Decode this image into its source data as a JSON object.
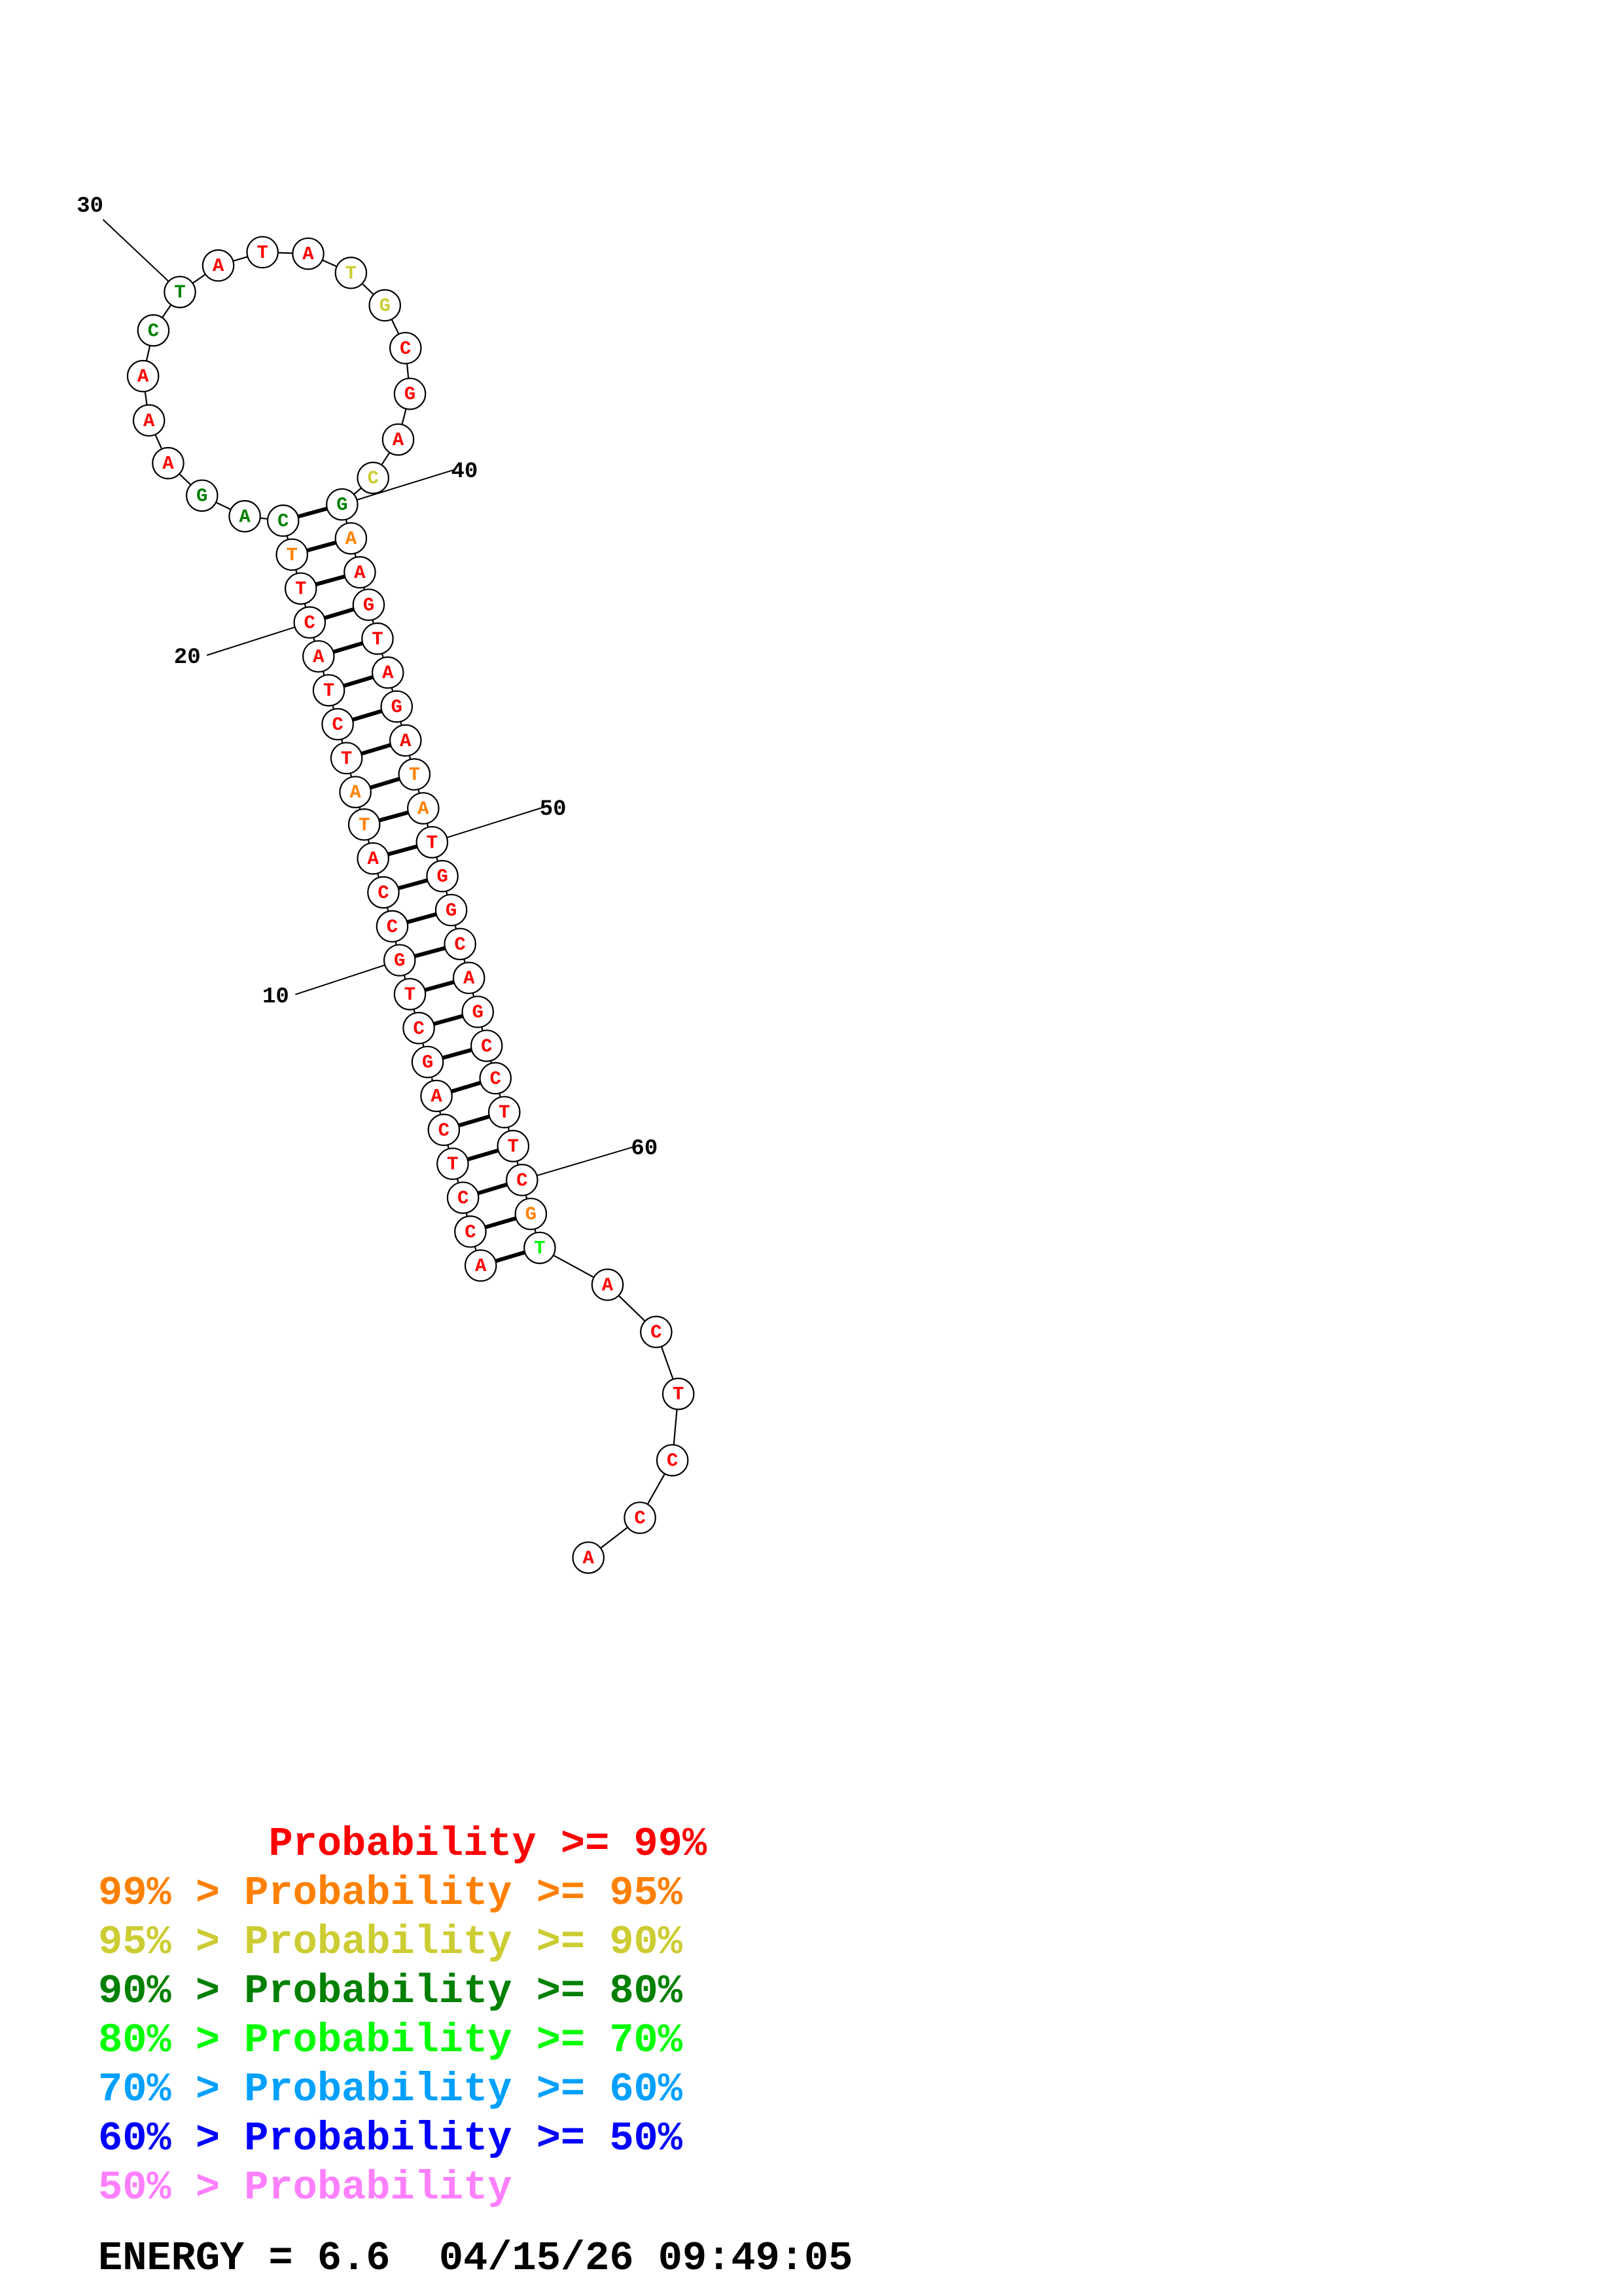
{
  "sequence": [
    {
      "n": 1,
      "base": "A",
      "color": "#ff0000"
    },
    {
      "n": 2,
      "base": "C",
      "color": "#ff0000"
    },
    {
      "n": 3,
      "base": "C",
      "color": "#ff0000"
    },
    {
      "n": 4,
      "base": "T",
      "color": "#ff0000"
    },
    {
      "n": 5,
      "base": "C",
      "color": "#ff0000"
    },
    {
      "n": 6,
      "base": "A",
      "color": "#ff0000"
    },
    {
      "n": 7,
      "base": "G",
      "color": "#ff0000"
    },
    {
      "n": 8,
      "base": "C",
      "color": "#ff0000"
    },
    {
      "n": 9,
      "base": "T",
      "color": "#ff0000"
    },
    {
      "n": 10,
      "base": "G",
      "color": "#ff0000"
    },
    {
      "n": 11,
      "base": "C",
      "color": "#ff0000"
    },
    {
      "n": 12,
      "base": "C",
      "color": "#ff0000"
    },
    {
      "n": 13,
      "base": "A",
      "color": "#ff0000"
    },
    {
      "n": 14,
      "base": "T",
      "color": "#ff8000"
    },
    {
      "n": 15,
      "base": "A",
      "color": "#ff8000"
    },
    {
      "n": 16,
      "base": "T",
      "color": "#ff0000"
    },
    {
      "n": 17,
      "base": "C",
      "color": "#ff0000"
    },
    {
      "n": 18,
      "base": "T",
      "color": "#ff0000"
    },
    {
      "n": 19,
      "base": "A",
      "color": "#ff0000"
    },
    {
      "n": 20,
      "base": "C",
      "color": "#ff0000"
    },
    {
      "n": 21,
      "base": "T",
      "color": "#ff0000"
    },
    {
      "n": 22,
      "base": "T",
      "color": "#ff8000"
    },
    {
      "n": 23,
      "base": "C",
      "color": "#008000"
    },
    {
      "n": 24,
      "base": "A",
      "color": "#008000"
    },
    {
      "n": 25,
      "base": "G",
      "color": "#008000"
    },
    {
      "n": 26,
      "base": "A",
      "color": "#ff0000"
    },
    {
      "n": 27,
      "base": "A",
      "color": "#ff0000"
    },
    {
      "n": 28,
      "base": "A",
      "color": "#ff0000"
    },
    {
      "n": 29,
      "base": "C",
      "color": "#008000"
    },
    {
      "n": 30,
      "base": "T",
      "color": "#008000"
    },
    {
      "n": 31,
      "base": "A",
      "color": "#ff0000"
    },
    {
      "n": 32,
      "base": "T",
      "color": "#ff0000"
    },
    {
      "n": 33,
      "base": "A",
      "color": "#ff0000"
    },
    {
      "n": 34,
      "base": "T",
      "color": "#cccc33"
    },
    {
      "n": 35,
      "base": "G",
      "color": "#cccc33"
    },
    {
      "n": 36,
      "base": "C",
      "color": "#ff0000"
    },
    {
      "n": 37,
      "base": "G",
      "color": "#ff0000"
    },
    {
      "n": 38,
      "base": "A",
      "color": "#ff0000"
    },
    {
      "n": 39,
      "base": "C",
      "color": "#cccc33"
    },
    {
      "n": 40,
      "base": "G",
      "color": "#008000"
    },
    {
      "n": 41,
      "base": "A",
      "color": "#ff8000"
    },
    {
      "n": 42,
      "base": "A",
      "color": "#ff0000"
    },
    {
      "n": 43,
      "base": "G",
      "color": "#ff0000"
    },
    {
      "n": 44,
      "base": "T",
      "color": "#ff0000"
    },
    {
      "n": 45,
      "base": "A",
      "color": "#ff0000"
    },
    {
      "n": 46,
      "base": "G",
      "color": "#ff0000"
    },
    {
      "n": 47,
      "base": "A",
      "color": "#ff0000"
    },
    {
      "n": 48,
      "base": "T",
      "color": "#ff8000"
    },
    {
      "n": 49,
      "base": "A",
      "color": "#ff8000"
    },
    {
      "n": 50,
      "base": "T",
      "color": "#ff0000"
    },
    {
      "n": 51,
      "base": "G",
      "color": "#ff0000"
    },
    {
      "n": 52,
      "base": "G",
      "color": "#ff0000"
    },
    {
      "n": 53,
      "base": "C",
      "color": "#ff0000"
    },
    {
      "n": 54,
      "base": "A",
      "color": "#ff0000"
    },
    {
      "n": 55,
      "base": "G",
      "color": "#ff0000"
    },
    {
      "n": 56,
      "base": "C",
      "color": "#ff0000"
    },
    {
      "n": 57,
      "base": "C",
      "color": "#ff0000"
    },
    {
      "n": 58,
      "base": "T",
      "color": "#ff0000"
    },
    {
      "n": 59,
      "base": "T",
      "color": "#ff0000"
    },
    {
      "n": 60,
      "base": "C",
      "color": "#ff0000"
    },
    {
      "n": 61,
      "base": "G",
      "color": "#ff8000"
    },
    {
      "n": 62,
      "base": "T",
      "color": "#00ff00"
    },
    {
      "n": 63,
      "base": "A",
      "color": "#ff0000"
    },
    {
      "n": 64,
      "base": "C",
      "color": "#ff0000"
    },
    {
      "n": 65,
      "base": "T",
      "color": "#ff0000"
    },
    {
      "n": 66,
      "base": "C",
      "color": "#ff0000"
    },
    {
      "n": 67,
      "base": "C",
      "color": "#ff0000"
    },
    {
      "n": 68,
      "base": "A",
      "color": "#ff0000"
    }
  ],
  "base_pairs": [
    [
      1,
      62
    ],
    [
      2,
      61
    ],
    [
      3,
      60
    ],
    [
      4,
      59
    ],
    [
      5,
      58
    ],
    [
      6,
      57
    ],
    [
      7,
      56
    ],
    [
      8,
      55
    ],
    [
      9,
      54
    ],
    [
      10,
      53
    ],
    [
      11,
      52
    ],
    [
      12,
      51
    ],
    [
      13,
      50
    ],
    [
      14,
      49
    ],
    [
      15,
      48
    ],
    [
      16,
      47
    ],
    [
      17,
      46
    ],
    [
      18,
      45
    ],
    [
      19,
      44
    ],
    [
      20,
      43
    ],
    [
      21,
      42
    ],
    [
      22,
      41
    ],
    [
      23,
      40
    ]
  ],
  "position_labels": [
    {
      "n": 10,
      "text": "10"
    },
    {
      "n": 20,
      "text": "20"
    },
    {
      "n": 30,
      "text": "30"
    },
    {
      "n": 40,
      "text": "40"
    },
    {
      "n": 50,
      "text": "50"
    },
    {
      "n": 60,
      "text": "60"
    }
  ],
  "legend": [
    {
      "text": "       Probability >= 99%",
      "color": "#ff0000"
    },
    {
      "text": "99% > Probability >= 95%",
      "color": "#ff8000"
    },
    {
      "text": "95% > Probability >= 90%",
      "color": "#cccc33"
    },
    {
      "text": "90% > Probability >= 80%",
      "color": "#008000"
    },
    {
      "text": "80% > Probability >= 70%",
      "color": "#00ff00"
    },
    {
      "text": "70% > Probability >= 60%",
      "color": "#00a0ff"
    },
    {
      "text": "60% > Probability >= 50%",
      "color": "#0000ff"
    },
    {
      "text": "50% > Probability",
      "color": "#ff80ff"
    }
  ],
  "energy_line": "ENERGY = 6.6  04/15/26 09:49:05"
}
